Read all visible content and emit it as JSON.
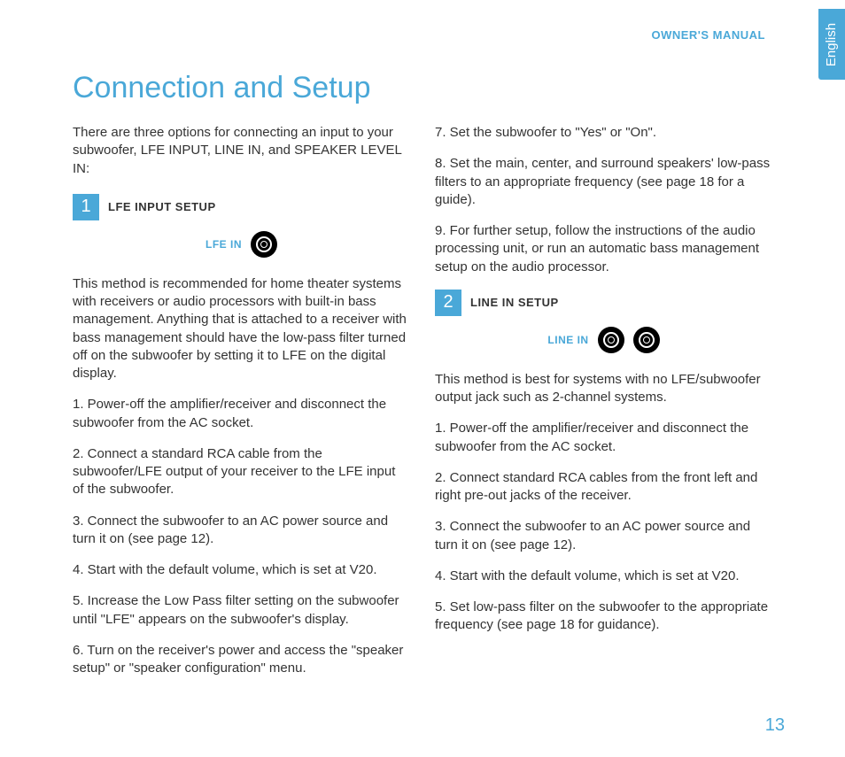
{
  "header": {
    "label": "OWNER'S MANUAL",
    "language_tab": "English"
  },
  "title": "Connection and Setup",
  "intro": "There are three options for connecting an input to your subwoofer, LFE INPUT, LINE IN, and SPEAKER LEVEL IN:",
  "colors": {
    "accent": "#4aa8d8",
    "text": "#333333",
    "background": "#ffffff"
  },
  "typography": {
    "title_fontsize": 34,
    "body_fontsize": 15,
    "label_fontsize": 13
  },
  "sections": [
    {
      "number": "1",
      "title": "LFE INPUT SETUP",
      "jack": {
        "label": "LFE IN",
        "count": 1
      },
      "body": "This method is recommended for home theater systems with receivers or audio processors with built-in bass management. Anything that is attached to a receiver with bass management should have the low-pass filter turned off on the subwoofer by setting it to LFE on the digital display.",
      "steps": [
        "1. Power-off the amplifier/receiver and disconnect the subwoofer from the AC socket.",
        "2. Connect a standard RCA cable from the subwoofer/LFE output of your receiver to the LFE input of the subwoofer.",
        "3. Connect the subwoofer to an AC power source and turn it on (see page 12).",
        "4. Start with the default volume, which is set at V20.",
        "5. Increase the Low Pass filter setting on the subwoofer until \"LFE\" appears on the subwoofer's display.",
        "6. Turn on the receiver's power and access the \"speaker setup\" or \"speaker configuration\" menu.",
        "7. Set the subwoofer to \"Yes\" or \"On\".",
        "8. Set the main, center, and surround speakers' low-pass filters to an appropriate frequency (see page 18 for a guide).",
        "9. For further setup, follow the instructions of the audio processing unit, or run an automatic bass management setup on the audio processor."
      ]
    },
    {
      "number": "2",
      "title": "LINE IN SETUP",
      "jack": {
        "label": "LINE IN",
        "count": 2
      },
      "body": "This method is best for systems with no LFE/subwoofer output jack such as 2-channel systems.",
      "steps": [
        "1. Power-off the amplifier/receiver and disconnect the subwoofer from the AC socket.",
        "2. Connect standard RCA cables from the front left and right pre-out jacks of the receiver.",
        "3. Connect the subwoofer to an AC power source and turn it on (see page 12).",
        "4. Start with the default volume, which is set at V20.",
        "5. Set low-pass filter on the subwoofer to the appropriate frequency (see page 18 for guidance)."
      ]
    }
  ],
  "page_number": "13"
}
